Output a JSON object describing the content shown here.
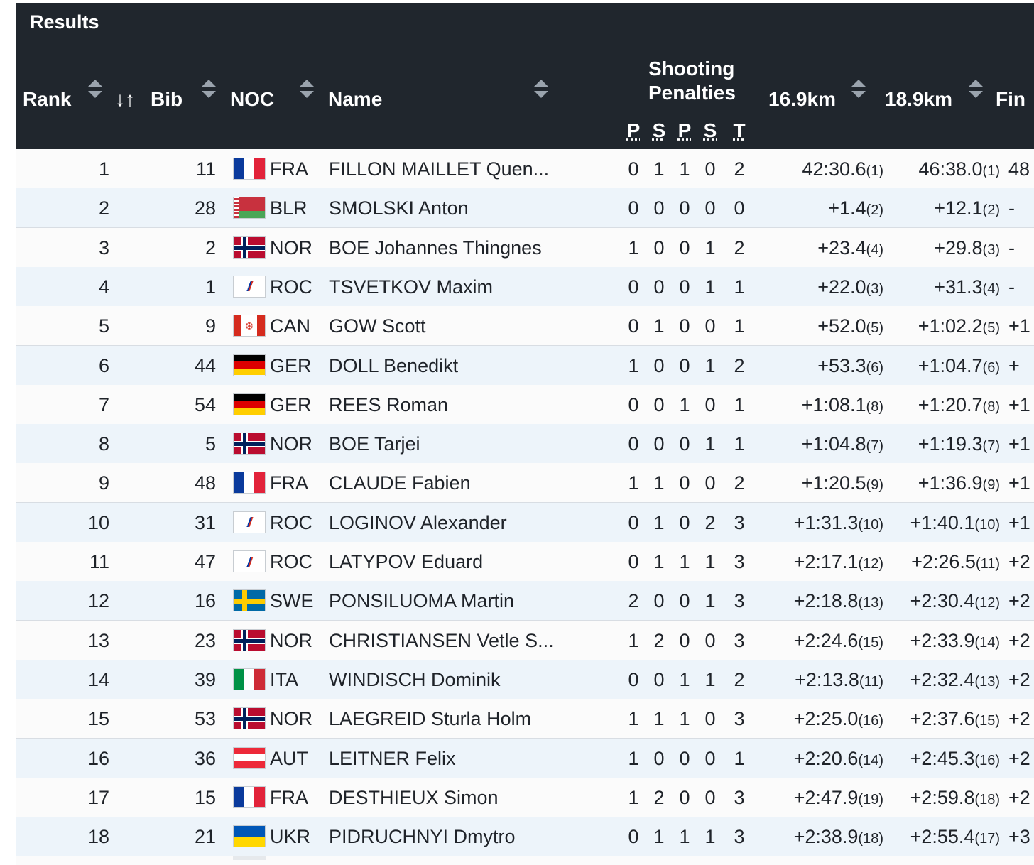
{
  "header": {
    "title": "Results",
    "columns": {
      "rank": "Rank",
      "sort_icon": "↓↑",
      "bib": "Bib",
      "noc": "NOC",
      "name": "Name",
      "shooting": [
        "Shooting",
        "Penalties"
      ],
      "split1": "16.9km",
      "split2": "18.9km",
      "final": "Fin"
    },
    "shooting_subcols": [
      "P",
      "S",
      "P",
      "S",
      "T"
    ]
  },
  "rows": [
    {
      "rank": "1",
      "bib": "11",
      "noc": "FRA",
      "name": "FILLON MAILLET Quen...",
      "p1": "0",
      "s1": "1",
      "p2": "1",
      "s2": "0",
      "t": "2",
      "t1": "42:30.6",
      "t1r": "(1)",
      "t2": "46:38.0",
      "t2r": "(1)",
      "fin": "48"
    },
    {
      "rank": "2",
      "bib": "28",
      "noc": "BLR",
      "name": "SMOLSKI Anton",
      "p1": "0",
      "s1": "0",
      "p2": "0",
      "s2": "0",
      "t": "0",
      "t1": "+1.4",
      "t1r": "(2)",
      "t2": "+12.1",
      "t2r": "(2)",
      "fin": "-"
    },
    {
      "rank": "3",
      "bib": "2",
      "noc": "NOR",
      "name": "BOE Johannes Thingnes",
      "p1": "1",
      "s1": "0",
      "p2": "0",
      "s2": "1",
      "t": "2",
      "t1": "+23.4",
      "t1r": "(4)",
      "t2": "+29.8",
      "t2r": "(3)",
      "fin": "-"
    },
    {
      "rank": "4",
      "bib": "1",
      "noc": "ROC",
      "name": "TSVETKOV Maxim",
      "p1": "0",
      "s1": "0",
      "p2": "0",
      "s2": "1",
      "t": "1",
      "t1": "+22.0",
      "t1r": "(3)",
      "t2": "+31.3",
      "t2r": "(4)",
      "fin": "-"
    },
    {
      "rank": "5",
      "bib": "9",
      "noc": "CAN",
      "name": "GOW Scott",
      "p1": "0",
      "s1": "1",
      "p2": "0",
      "s2": "0",
      "t": "1",
      "t1": "+52.0",
      "t1r": "(5)",
      "t2": "+1:02.2",
      "t2r": "(5)",
      "fin": "+1"
    },
    {
      "rank": "6",
      "bib": "44",
      "noc": "GER",
      "name": "DOLL Benedikt",
      "p1": "1",
      "s1": "0",
      "p2": "0",
      "s2": "1",
      "t": "2",
      "t1": "+53.3",
      "t1r": "(6)",
      "t2": "+1:04.7",
      "t2r": "(6)",
      "fin": "+"
    },
    {
      "rank": "7",
      "bib": "54",
      "noc": "GER",
      "name": "REES Roman",
      "p1": "0",
      "s1": "0",
      "p2": "1",
      "s2": "0",
      "t": "1",
      "t1": "+1:08.1",
      "t1r": "(8)",
      "t2": "+1:20.7",
      "t2r": "(8)",
      "fin": "+1"
    },
    {
      "rank": "8",
      "bib": "5",
      "noc": "NOR",
      "name": "BOE Tarjei",
      "p1": "0",
      "s1": "0",
      "p2": "0",
      "s2": "1",
      "t": "1",
      "t1": "+1:04.8",
      "t1r": "(7)",
      "t2": "+1:19.3",
      "t2r": "(7)",
      "fin": "+1"
    },
    {
      "rank": "9",
      "bib": "48",
      "noc": "FRA",
      "name": "CLAUDE Fabien",
      "p1": "1",
      "s1": "1",
      "p2": "0",
      "s2": "0",
      "t": "2",
      "t1": "+1:20.5",
      "t1r": "(9)",
      "t2": "+1:36.9",
      "t2r": "(9)",
      "fin": "+1"
    },
    {
      "rank": "10",
      "bib": "31",
      "noc": "ROC",
      "name": "LOGINOV Alexander",
      "p1": "0",
      "s1": "1",
      "p2": "0",
      "s2": "2",
      "t": "3",
      "t1": "+1:31.3",
      "t1r": "(10)",
      "t2": "+1:40.1",
      "t2r": "(10)",
      "fin": "+1"
    },
    {
      "rank": "11",
      "bib": "47",
      "noc": "ROC",
      "name": "LATYPOV Eduard",
      "p1": "0",
      "s1": "1",
      "p2": "1",
      "s2": "1",
      "t": "3",
      "t1": "+2:17.1",
      "t1r": "(12)",
      "t2": "+2:26.5",
      "t2r": "(11)",
      "fin": "+2"
    },
    {
      "rank": "12",
      "bib": "16",
      "noc": "SWE",
      "name": "PONSILUOMA Martin",
      "p1": "2",
      "s1": "0",
      "p2": "0",
      "s2": "1",
      "t": "3",
      "t1": "+2:18.8",
      "t1r": "(13)",
      "t2": "+2:30.4",
      "t2r": "(12)",
      "fin": "+2"
    },
    {
      "rank": "13",
      "bib": "23",
      "noc": "NOR",
      "name": "CHRISTIANSEN Vetle S...",
      "p1": "1",
      "s1": "2",
      "p2": "0",
      "s2": "0",
      "t": "3",
      "t1": "+2:24.6",
      "t1r": "(15)",
      "t2": "+2:33.9",
      "t2r": "(14)",
      "fin": "+2"
    },
    {
      "rank": "14",
      "bib": "39",
      "noc": "ITA",
      "name": "WINDISCH Dominik",
      "p1": "0",
      "s1": "0",
      "p2": "1",
      "s2": "1",
      "t": "2",
      "t1": "+2:13.8",
      "t1r": "(11)",
      "t2": "+2:32.4",
      "t2r": "(13)",
      "fin": "+2"
    },
    {
      "rank": "15",
      "bib": "53",
      "noc": "NOR",
      "name": "LAEGREID Sturla Holm",
      "p1": "1",
      "s1": "1",
      "p2": "1",
      "s2": "0",
      "t": "3",
      "t1": "+2:25.0",
      "t1r": "(16)",
      "t2": "+2:37.6",
      "t2r": "(15)",
      "fin": "+2"
    },
    {
      "rank": "16",
      "bib": "36",
      "noc": "AUT",
      "name": "LEITNER Felix",
      "p1": "1",
      "s1": "0",
      "p2": "0",
      "s2": "0",
      "t": "1",
      "t1": "+2:20.6",
      "t1r": "(14)",
      "t2": "+2:45.3",
      "t2r": "(16)",
      "fin": "+2"
    },
    {
      "rank": "17",
      "bib": "15",
      "noc": "FRA",
      "name": "DESTHIEUX Simon",
      "p1": "1",
      "s1": "2",
      "p2": "0",
      "s2": "0",
      "t": "3",
      "t1": "+2:47.9",
      "t1r": "(19)",
      "t2": "+2:59.8",
      "t2r": "(18)",
      "fin": "+2"
    },
    {
      "rank": "18",
      "bib": "21",
      "noc": "UKR",
      "name": "PIDRUCHNYI Dmytro",
      "p1": "0",
      "s1": "1",
      "p2": "1",
      "s2": "1",
      "t": "3",
      "t1": "+2:38.9",
      "t1r": "(18)",
      "t2": "+2:55.4",
      "t2r": "(17)",
      "fin": "+3"
    }
  ]
}
